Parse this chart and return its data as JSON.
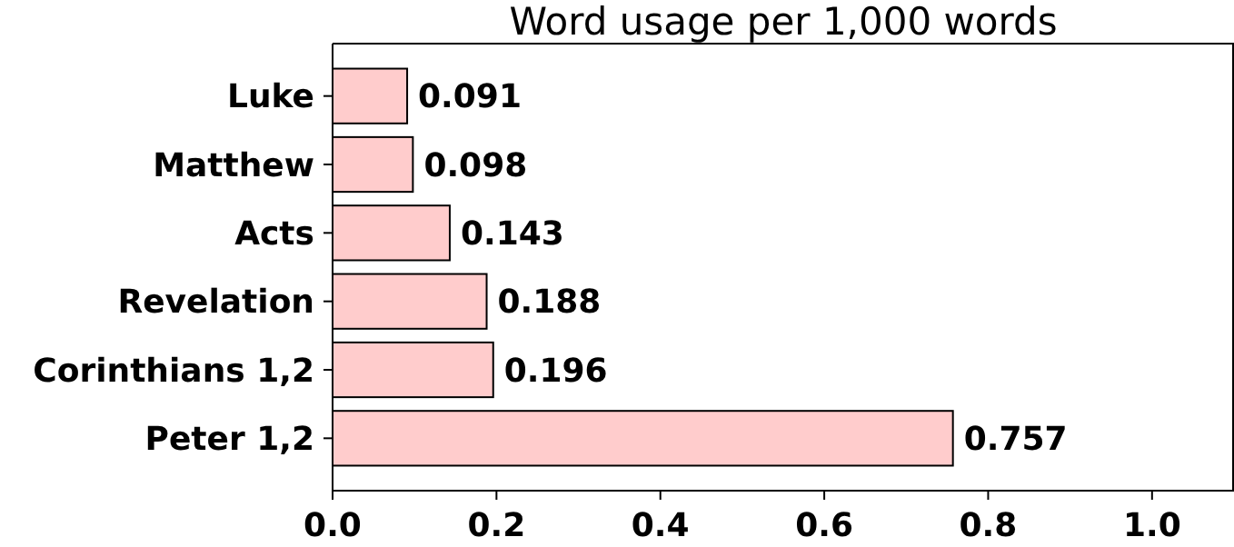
{
  "chart_data": {
    "type": "bar",
    "orientation": "horizontal",
    "title": "Word usage per 1,000 words",
    "categories": [
      "Luke",
      "Matthew",
      "Acts",
      "Revelation",
      "Corinthians 1,2",
      "Peter 1,2"
    ],
    "values": [
      0.091,
      0.098,
      0.143,
      0.188,
      0.196,
      0.757
    ],
    "color": "#ffcccc",
    "xlim": [
      0,
      1.1
    ],
    "xticks": [
      {
        "value": 0,
        "label": "0.0"
      },
      0.2,
      0.4,
      0.6,
      0.8,
      {
        "value": 1,
        "label": "1.0"
      }
    ],
    "data_labels": true
  }
}
